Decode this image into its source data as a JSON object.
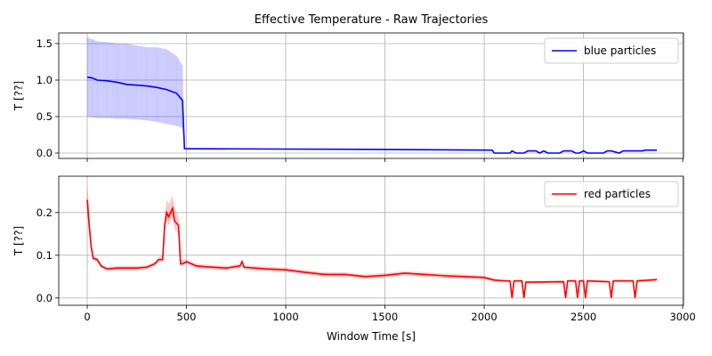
{
  "chart_data": [
    {
      "type": "line",
      "title": "Effective Temperature - Raw Trajectories",
      "ylabel": "T [??]",
      "x": [
        0,
        25,
        50,
        100,
        150,
        200,
        250,
        300,
        350,
        400,
        450,
        480,
        490,
        1000,
        1500,
        2040,
        2050,
        2130,
        2140,
        2160,
        2200,
        2220,
        2260,
        2280,
        2300,
        2320,
        2380,
        2400,
        2440,
        2460,
        2480,
        2500,
        2520,
        2600,
        2620,
        2640,
        2680,
        2700,
        2800,
        2810,
        2870
      ],
      "series": [
        {
          "name": "blue particles",
          "color": "#0000ff",
          "values": [
            1.04,
            1.03,
            1.0,
            0.99,
            0.97,
            0.94,
            0.93,
            0.92,
            0.9,
            0.87,
            0.82,
            0.72,
            0.06,
            0.055,
            0.05,
            0.04,
            0,
            0,
            0.03,
            0,
            0,
            0.03,
            0.03,
            0,
            0.03,
            0,
            0,
            0.03,
            0.03,
            0,
            0,
            0.03,
            0,
            0,
            0.03,
            0.03,
            0,
            0.03,
            0.03,
            0.04,
            0.04
          ],
          "upper": [
            1.58,
            1.56,
            1.53,
            1.52,
            1.5,
            1.5,
            1.47,
            1.45,
            1.45,
            1.42,
            1.33,
            1.2,
            0.07,
            0.06,
            0.055,
            0.045,
            0,
            0,
            0.035,
            0,
            0,
            0.035,
            0.035,
            0,
            0.035,
            0,
            0,
            0.035,
            0.035,
            0,
            0,
            0.035,
            0,
            0,
            0.035,
            0.035,
            0,
            0.035,
            0.035,
            0.045,
            0.045
          ],
          "lower": [
            0.5,
            0.49,
            0.48,
            0.48,
            0.47,
            0.47,
            0.46,
            0.45,
            0.43,
            0.4,
            0.37,
            0.35,
            0.05,
            0.05,
            0.045,
            0.035,
            0,
            0,
            0.025,
            0,
            0,
            0.025,
            0.025,
            0,
            0.025,
            0,
            0,
            0.025,
            0.025,
            0,
            0,
            0.025,
            0,
            0,
            0.025,
            0.025,
            0,
            0.025,
            0.025,
            0.035,
            0.035
          ]
        }
      ],
      "ylim": [
        -0.073,
        1.646
      ],
      "yticks": [
        {
          "value": 0,
          "label": "0.0"
        },
        0.5,
        {
          "value": 1,
          "label": "1.0"
        },
        1.5
      ],
      "grid": true,
      "legend": "upper right"
    },
    {
      "type": "line",
      "ylabel": "T [??]",
      "xlabel": "Window Time [s]",
      "x": [
        0,
        10,
        20,
        30,
        50,
        70,
        100,
        150,
        200,
        250,
        300,
        340,
        360,
        380,
        390,
        400,
        410,
        430,
        440,
        460,
        470,
        480,
        500,
        550,
        600,
        700,
        770,
        780,
        790,
        900,
        1000,
        1100,
        1200,
        1300,
        1400,
        1500,
        1600,
        1700,
        1800,
        1900,
        2000,
        2050,
        2100,
        2130,
        2140,
        2150,
        2190,
        2200,
        2210,
        2400,
        2410,
        2420,
        2460,
        2470,
        2480,
        2500,
        2510,
        2520,
        2630,
        2640,
        2650,
        2750,
        2760,
        2770,
        2870
      ],
      "series": [
        {
          "name": "red particles",
          "color": "#ff0000",
          "values": [
            0.23,
            0.17,
            0.12,
            0.093,
            0.09,
            0.075,
            0.068,
            0.07,
            0.07,
            0.07,
            0.072,
            0.08,
            0.09,
            0.09,
            0.17,
            0.2,
            0.19,
            0.21,
            0.18,
            0.17,
            0.08,
            0.08,
            0.085,
            0.075,
            0.073,
            0.07,
            0.075,
            0.085,
            0.072,
            0.068,
            0.066,
            0.06,
            0.055,
            0.055,
            0.05,
            0.053,
            0.058,
            0.055,
            0.052,
            0.05,
            0.048,
            0.042,
            0.04,
            0.04,
            0,
            0.04,
            0.04,
            0,
            0.037,
            0.038,
            0,
            0.04,
            0.04,
            0,
            0.04,
            0.04,
            0,
            0.04,
            0.038,
            0,
            0.04,
            0.04,
            0,
            0.04,
            0.043
          ],
          "upper": [
            0.27,
            0.2,
            0.13,
            0.1,
            0.095,
            0.08,
            0.073,
            0.075,
            0.075,
            0.075,
            0.077,
            0.085,
            0.095,
            0.1,
            0.19,
            0.23,
            0.22,
            0.24,
            0.21,
            0.19,
            0.09,
            0.09,
            0.09,
            0.08,
            0.078,
            0.075,
            0.08,
            0.09,
            0.077,
            0.073,
            0.071,
            0.065,
            0.06,
            0.06,
            0.055,
            0.058,
            0.063,
            0.06,
            0.057,
            0.055,
            0.052,
            0.046,
            0.043,
            0.043,
            0.003,
            0.043,
            0.043,
            0.003,
            0.04,
            0.041,
            0.003,
            0.043,
            0.043,
            0.003,
            0.043,
            0.043,
            0.003,
            0.043,
            0.041,
            0.003,
            0.043,
            0.043,
            0.003,
            0.043,
            0.046
          ],
          "lower": [
            0.2,
            0.15,
            0.11,
            0.088,
            0.085,
            0.07,
            0.063,
            0.065,
            0.065,
            0.065,
            0.067,
            0.075,
            0.085,
            0.085,
            0.15,
            0.18,
            0.17,
            0.19,
            0.16,
            0.15,
            0.075,
            0.075,
            0.08,
            0.07,
            0.068,
            0.065,
            0.07,
            0.08,
            0.067,
            0.063,
            0.061,
            0.055,
            0.05,
            0.05,
            0.045,
            0.048,
            0.053,
            0.05,
            0.047,
            0.045,
            0.044,
            0.038,
            0.037,
            0.037,
            0,
            0.037,
            0.037,
            0,
            0.034,
            0.035,
            0,
            0.037,
            0.037,
            0,
            0.037,
            0.037,
            0,
            0.037,
            0.035,
            0,
            0.037,
            0.037,
            0,
            0.037,
            0.04
          ]
        }
      ],
      "xlim": [
        -143.5,
        3004
      ],
      "xticks": [
        0,
        500,
        1000,
        1500,
        2000,
        2500,
        3000
      ],
      "ylim": [
        -0.017,
        0.285
      ],
      "yticks": [
        {
          "value": 0,
          "label": "0.0"
        },
        0.1,
        0.2
      ],
      "grid": true,
      "legend": "upper right"
    }
  ]
}
